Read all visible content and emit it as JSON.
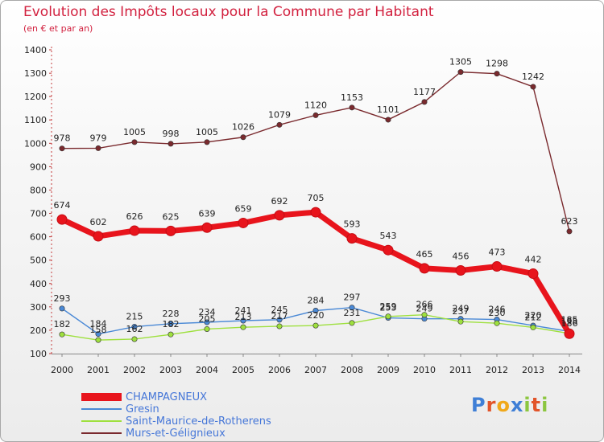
{
  "title": "Evolution des Impôts locaux pour la Commune par Habitant",
  "subtitle": "(en € et par an)",
  "brand": {
    "letters": [
      {
        "ch": "P",
        "color": "#3f7fd6"
      },
      {
        "ch": "r",
        "color": "#e2542a"
      },
      {
        "ch": "o",
        "color": "#f0a81a"
      },
      {
        "ch": "x",
        "color": "#3f7fd6"
      },
      {
        "ch": "i",
        "color": "#8cc63f"
      },
      {
        "ch": "t",
        "color": "#e2542a"
      },
      {
        "ch": "i",
        "color": "#8cc63f"
      }
    ]
  },
  "chart_data": {
    "type": "line",
    "title": "Evolution des Impôts locaux pour la Commune par Habitant",
    "subtitle": "(en € et par an)",
    "xlabel": "",
    "ylabel": "",
    "x": [
      2000,
      2001,
      2002,
      2003,
      2004,
      2005,
      2006,
      2007,
      2008,
      2009,
      2010,
      2011,
      2012,
      2013,
      2014
    ],
    "ylim": [
      100,
      1400
    ],
    "yticks": [
      100,
      200,
      300,
      400,
      500,
      600,
      700,
      800,
      900,
      1000,
      1100,
      1200,
      1300,
      1400
    ],
    "grid": false,
    "legend_position": "bottom-left",
    "series": [
      {
        "name": "CHAMPAGNEUX",
        "color": "#e8141c",
        "emphasis": true,
        "values": [
          674,
          602,
          626,
          625,
          639,
          659,
          692,
          705,
          593,
          543,
          465,
          456,
          473,
          442,
          185
        ]
      },
      {
        "name": "Gresin",
        "color": "#4a89d6",
        "emphasis": false,
        "values": [
          293,
          184,
          215,
          228,
          234,
          241,
          245,
          284,
          297,
          253,
          249,
          249,
          246,
          220,
          195
        ]
      },
      {
        "name": "Saint-Maurice-de-Rotherens",
        "color": "#9ee03e",
        "emphasis": false,
        "values": [
          182,
          158,
          162,
          182,
          205,
          213,
          217,
          220,
          231,
          259,
          266,
          237,
          230,
          212,
          186
        ]
      },
      {
        "name": "Murs-et-Gélignieux",
        "color": "#7a2a2e",
        "emphasis": false,
        "values": [
          978,
          979,
          1005,
          998,
          1005,
          1026,
          1079,
          1120,
          1153,
          1101,
          1177,
          1305,
          1298,
          1242,
          623
        ]
      }
    ]
  }
}
